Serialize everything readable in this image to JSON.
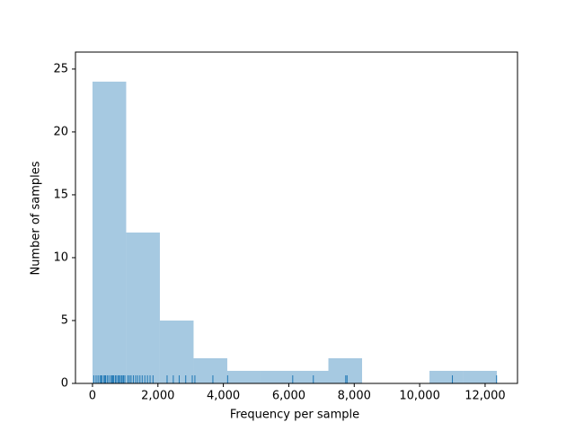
{
  "chart_data": {
    "type": "histogram",
    "xlabel": "Frequency per sample",
    "ylabel": "Number of samples",
    "bins": [
      0,
      1030,
      2060,
      3090,
      4120,
      5150,
      6180,
      7210,
      8240,
      9270,
      10300,
      11330,
      12360
    ],
    "counts": [
      24,
      12,
      5,
      2,
      1,
      1,
      1,
      2,
      0,
      0,
      1,
      1
    ],
    "rug": [
      40,
      110,
      170,
      230,
      270,
      290,
      350,
      380,
      400,
      450,
      500,
      560,
      600,
      620,
      650,
      700,
      740,
      790,
      820,
      830,
      880,
      910,
      950,
      990,
      1080,
      1130,
      1180,
      1250,
      1320,
      1380,
      1450,
      1520,
      1600,
      1680,
      1760,
      1850,
      2280,
      2470,
      2650,
      2850,
      3050,
      3130,
      3680,
      4130,
      6120,
      6750,
      7740,
      7780,
      11000,
      12350
    ],
    "color": "#a6c9e1",
    "rug_color": "#1f77b4",
    "xlim": [
      -520,
      12990
    ],
    "ylim": [
      0,
      26.35
    ],
    "xticks": [
      0,
      {
        "value": 2000,
        "label": "2,000"
      },
      {
        "value": 4000,
        "label": "4,000"
      },
      {
        "value": 6000,
        "label": "6,000"
      },
      {
        "value": 8000,
        "label": "8,000"
      },
      {
        "value": 10000,
        "label": "10,000"
      },
      {
        "value": 12000,
        "label": "12,000"
      }
    ],
    "yticks": [
      0,
      5,
      10,
      15,
      20,
      25
    ],
    "grid": false
  }
}
